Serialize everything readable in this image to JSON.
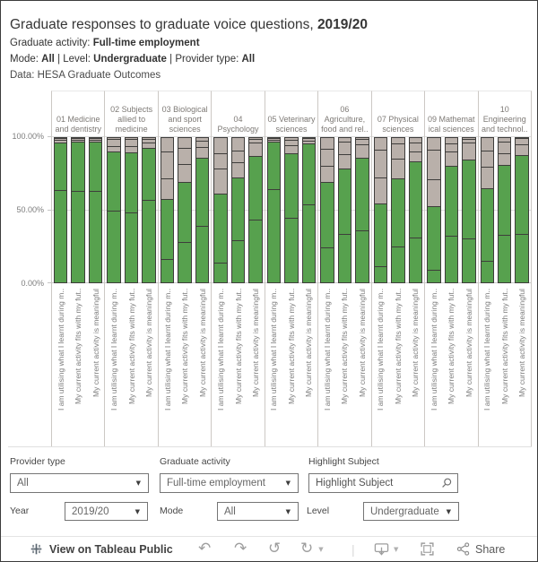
{
  "header": {
    "title_main": "Graduate responses to graduate voice questions, ",
    "title_year": "2019/20",
    "activity_label": "Graduate activity: ",
    "activity_value": "Full-time employment",
    "mode_label": "Mode: ",
    "mode_value": "All",
    "sep1": " | ",
    "level_label": "Level: ",
    "level_value": "Undergraduate",
    "sep2": " | ",
    "provider_label": "Provider type: ",
    "provider_value": "All",
    "data_source": "Data: HESA Graduate Outcomes"
  },
  "chart_data": {
    "type": "stacked-bar-100",
    "y_ticks": [
      "100.00%",
      "50.00%",
      "0.00%"
    ],
    "ylim": [
      0,
      100
    ],
    "grid": true,
    "questions": [
      "I am utilising what I learnt during m..",
      "My current activity fits with my fut..",
      "My current activity is meaningful"
    ],
    "segment_colors": [
      "#57a14e",
      "#57a14e",
      "#b9b0aa",
      "#b9b0aa",
      "#b9b0aa"
    ],
    "segment_border": "#3e3d3b",
    "note": "each bar = 5 stacked segments bottom-to-top, percent of 100",
    "groups": [
      {
        "label_lines": [
          "01 Medicine",
          "and dentistry"
        ],
        "bars": [
          [
            63.5,
            32.5,
            1.5,
            1,
            1.5
          ],
          [
            63,
            33.5,
            1.5,
            1,
            1
          ],
          [
            63,
            33.5,
            1.5,
            1,
            1
          ]
        ]
      },
      {
        "label_lines": [
          "02 Subjects",
          "allied to",
          "medicine"
        ],
        "bars": [
          [
            49,
            40.5,
            4,
            4.5,
            2
          ],
          [
            48,
            41,
            4.5,
            4.5,
            2
          ],
          [
            56.5,
            35.5,
            3.5,
            2.5,
            2
          ]
        ]
      },
      {
        "label_lines": [
          "03 Biological",
          "and sport",
          "sciences"
        ],
        "bars": [
          [
            16,
            41,
            14,
            18.5,
            10.5
          ],
          [
            27.5,
            41.5,
            12,
            11,
            8
          ],
          [
            38.5,
            47,
            7,
            4.5,
            3
          ]
        ]
      },
      {
        "label_lines": [
          "04",
          "Psychology"
        ],
        "bars": [
          [
            13.5,
            47.5,
            17,
            10.5,
            11.5
          ],
          [
            29,
            43,
            10,
            8,
            10
          ],
          [
            43,
            43.5,
            9,
            2.5,
            2
          ]
        ]
      },
      {
        "label_lines": [
          "05 Veterinary",
          "sciences"
        ],
        "bars": [
          [
            64,
            32.5,
            1.5,
            1,
            1
          ],
          [
            44.5,
            44,
            5.5,
            3.5,
            2.5
          ],
          [
            53.5,
            41.5,
            2,
            1.5,
            1.5
          ]
        ]
      },
      {
        "label_lines": [
          "06",
          "Agriculture,",
          "food and rel.."
        ],
        "bars": [
          [
            24,
            44.5,
            11.5,
            11.5,
            8.5
          ],
          [
            33.5,
            44.5,
            9.5,
            8.5,
            4
          ],
          [
            35.5,
            50,
            9,
            3.5,
            2
          ]
        ]
      },
      {
        "label_lines": [
          "07 Physical",
          "sciences"
        ],
        "bars": [
          [
            11,
            43,
            17.5,
            19.5,
            9
          ],
          [
            25,
            46,
            13.5,
            10.5,
            5
          ],
          [
            31,
            52,
            6.5,
            6,
            4.5
          ]
        ]
      },
      {
        "label_lines": [
          "09 Mathemat",
          "ical sciences"
        ],
        "bars": [
          [
            9,
            43,
            18.5,
            20.5,
            9
          ],
          [
            32,
            48,
            9.5,
            5.5,
            5
          ],
          [
            30.5,
            53.5,
            11.5,
            2.5,
            2
          ]
        ]
      },
      {
        "label_lines": [
          "10",
          "Engineering",
          "and technol.."
        ],
        "bars": [
          [
            15,
            49.5,
            14.5,
            11,
            10
          ],
          [
            32.5,
            48,
            8,
            7.5,
            4
          ],
          [
            33.5,
            54,
            7,
            4.5,
            1
          ]
        ]
      }
    ]
  },
  "filters": {
    "provider": {
      "label": "Provider type",
      "value": "All"
    },
    "activity": {
      "label": "Graduate activity",
      "value": "Full-time employment"
    },
    "highlight": {
      "label": "Highlight Subject",
      "placeholder": "Highlight Subject"
    },
    "year": {
      "label": "Year",
      "value": "2019/20"
    },
    "mode": {
      "label": "Mode",
      "value": "All"
    },
    "level": {
      "label": "Level",
      "value": "Undergraduate"
    }
  },
  "toolbar": {
    "view_label": "View on Tableau Public",
    "share_label": "Share"
  }
}
